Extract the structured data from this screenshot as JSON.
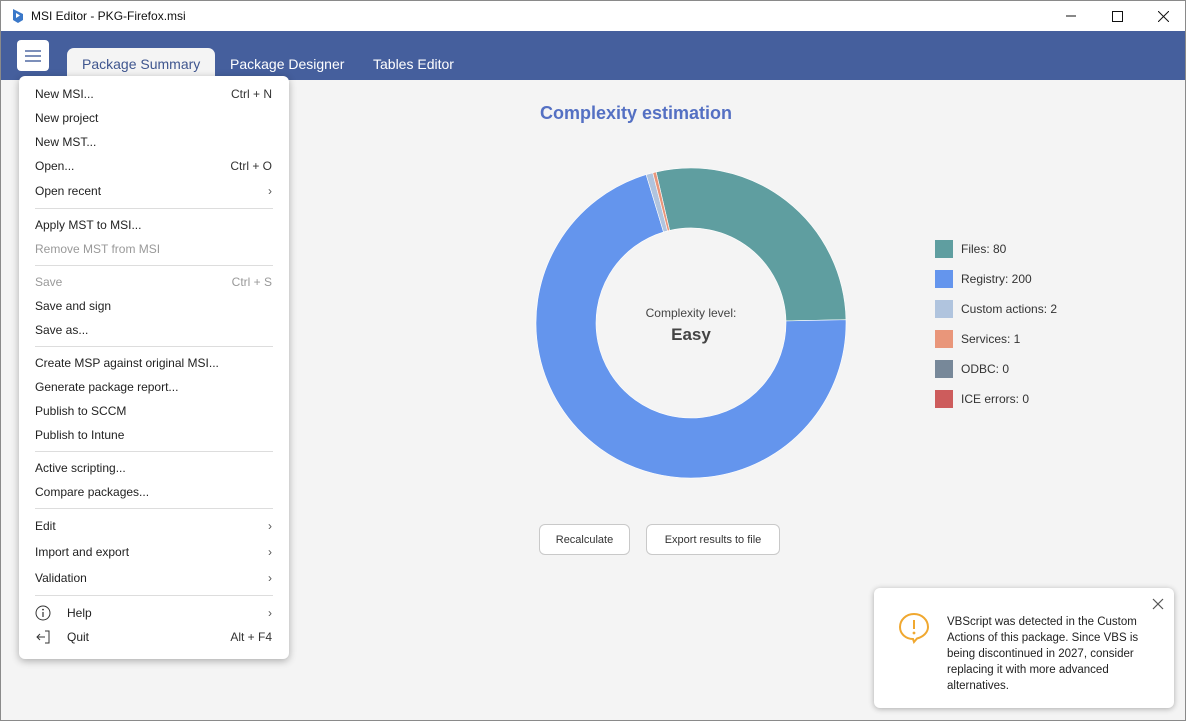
{
  "window": {
    "title": "MSI Editor - PKG-Firefox.msi"
  },
  "tabs": [
    {
      "label": "Package Summary"
    },
    {
      "label": "Package Designer"
    },
    {
      "label": "Tables Editor"
    }
  ],
  "menu": {
    "items": [
      {
        "label": "New MSI...",
        "shortcut": "Ctrl + N"
      },
      {
        "label": "New project"
      },
      {
        "label": "New MST..."
      },
      {
        "label": "Open...",
        "shortcut": "Ctrl + O"
      },
      {
        "label": "Open recent"
      },
      {
        "label": "Apply MST to MSI..."
      },
      {
        "label": "Remove MST from MSI"
      },
      {
        "label": "Save",
        "shortcut": "Ctrl + S"
      },
      {
        "label": "Save and sign"
      },
      {
        "label": "Save as..."
      },
      {
        "label": "Create MSP against original MSI..."
      },
      {
        "label": "Generate package report..."
      },
      {
        "label": "Publish to SCCM"
      },
      {
        "label": "Publish to Intune"
      },
      {
        "label": "Active scripting..."
      },
      {
        "label": "Compare packages..."
      },
      {
        "label": "Edit"
      },
      {
        "label": "Import and export"
      },
      {
        "label": "Validation"
      },
      {
        "label": "Help"
      },
      {
        "label": "Quit",
        "shortcut": "Alt + F4"
      }
    ]
  },
  "summary": {
    "title": "Complexity estimation",
    "center_label": "Complexity level:",
    "center_value": "Easy",
    "recalculate_label": "Recalculate",
    "export_label": "Export results to file"
  },
  "chart_data": {
    "type": "pie",
    "title": "Complexity estimation",
    "categories": [
      "Files",
      "Registry",
      "Custom actions",
      "Services",
      "ODBC",
      "ICE errors"
    ],
    "values": [
      80,
      200,
      2,
      1,
      0,
      0
    ],
    "colors": [
      "#5f9ea0",
      "#6495ed",
      "#b0c4de",
      "#e9967a",
      "#778899",
      "#cd5c5c"
    ],
    "legend_labels": [
      "Files: 80",
      "Registry: 200",
      "Custom actions: 2",
      "Services: 1",
      "ODBC: 0",
      "ICE errors: 0"
    ],
    "legend_position": "right"
  },
  "toast": {
    "message": "VBScript was detected in the Custom Actions of this package. Since VBS is being discontinued in 2027, consider replacing it with more advanced alternatives."
  }
}
